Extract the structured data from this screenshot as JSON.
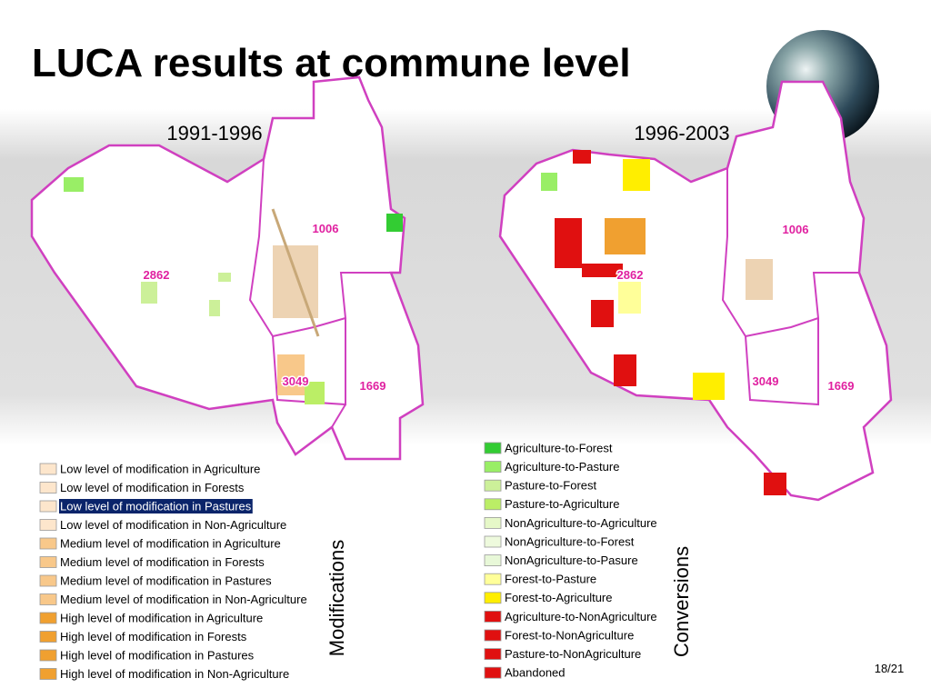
{
  "title": "LUCA results at commune level",
  "maps": [
    {
      "period": "1991-1996",
      "communes": [
        "2862",
        "1006",
        "3049",
        "1669"
      ],
      "legend_title": "Modifications",
      "legend": [
        {
          "label": "Low level of modification in Agriculture",
          "color": "#fde6cc"
        },
        {
          "label": "Low level of modification in Forests",
          "color": "#fde6cc"
        },
        {
          "label": "Low level of modification in Pastures",
          "color": "#fde6cc",
          "selected": true
        },
        {
          "label": "Low level of modification in Non-Agriculture",
          "color": "#fde6cc"
        },
        {
          "label": "Medium level of modification in Agriculture",
          "color": "#f8c88a"
        },
        {
          "label": "Medium level of modification in Forests",
          "color": "#f8c88a"
        },
        {
          "label": "Medium level of modification in Pastures",
          "color": "#f8c88a"
        },
        {
          "label": "Medium level of modification in Non-Agriculture",
          "color": "#f8c88a"
        },
        {
          "label": "High level of modification in Agriculture",
          "color": "#f0a030"
        },
        {
          "label": "High level of modification in Forests",
          "color": "#f0a030"
        },
        {
          "label": "High level of modification in Pastures",
          "color": "#f0a030"
        },
        {
          "label": "High level of modification in Non-Agriculture",
          "color": "#f0a030"
        }
      ]
    },
    {
      "period": "1996-2003",
      "communes": [
        "2862",
        "1006",
        "3049",
        "1669"
      ],
      "legend_title": "Conversions",
      "legend": [
        {
          "label": "Agriculture-to-Forest",
          "color": "#33cc33"
        },
        {
          "label": "Agriculture-to-Pasture",
          "color": "#99ee66"
        },
        {
          "label": "Pasture-to-Forest",
          "color": "#ccf099"
        },
        {
          "label": "Pasture-to-Agriculture",
          "color": "#bbee66"
        },
        {
          "label": "NonAgriculture-to-Agriculture",
          "color": "#e6f8c8"
        },
        {
          "label": "NonAgriculture-to-Forest",
          "color": "#eefadd"
        },
        {
          "label": "NonAgriculture-to-Pasure",
          "color": "#e8f8d8"
        },
        {
          "label": "Forest-to-Pasture",
          "color": "#ffff99"
        },
        {
          "label": "Forest-to-Agriculture",
          "color": "#ffee00"
        },
        {
          "label": "Agriculture-to-NonAgriculture",
          "color": "#e01010"
        },
        {
          "label": "Forest-to-NonAgriculture",
          "color": "#e01010"
        },
        {
          "label": "Pasture-to-NonAgriculture",
          "color": "#e01010"
        },
        {
          "label": "Abandoned",
          "color": "#e01010"
        }
      ]
    }
  ],
  "page_number": "18/21"
}
